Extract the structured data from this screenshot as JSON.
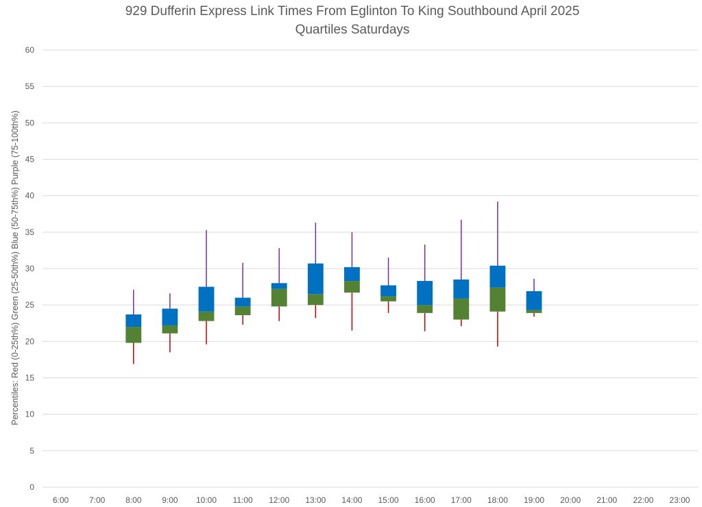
{
  "chart_data": {
    "type": "box",
    "title": "929 Dufferin Express Link Times From Eglinton To King Southbound April 2025",
    "subtitle": "Quartiles Saturdays",
    "ylabel": "Percentiles:  Red (0-25th%)  Green (25-50th%)  Blue (50-75th%)  Purple (75-100th%)",
    "xlabel": "",
    "ylim": [
      0,
      60
    ],
    "yticks": [
      "0",
      "5",
      "10",
      "15",
      "20",
      "25",
      "30",
      "35",
      "40",
      "45",
      "50",
      "55",
      "60"
    ],
    "grid": true,
    "legend": "none",
    "categories": [
      "6:00",
      "7:00",
      "8:00",
      "9:00",
      "10:00",
      "11:00",
      "12:00",
      "13:00",
      "14:00",
      "15:00",
      "16:00",
      "17:00",
      "18:00",
      "19:00",
      "20:00",
      "21:00",
      "22:00",
      "23:00"
    ],
    "colors": {
      "min_to_q1": "#c00000",
      "q1_to_median": "#548235",
      "median_to_q3": "#0070c0",
      "q3_to_max": "#7030a0",
      "grid": "#d9d9d9",
      "text": "#595959"
    },
    "quartiles": [
      {
        "x": "8:00",
        "min": 16.9,
        "q1": 19.8,
        "median": 22.0,
        "q3": 23.7,
        "max": 27.1
      },
      {
        "x": "9:00",
        "min": 18.5,
        "q1": 21.1,
        "median": 22.2,
        "q3": 24.5,
        "max": 26.6
      },
      {
        "x": "10:00",
        "min": 19.6,
        "q1": 22.8,
        "median": 24.1,
        "q3": 27.5,
        "max": 35.3
      },
      {
        "x": "11:00",
        "min": 22.3,
        "q1": 23.6,
        "median": 24.8,
        "q3": 26.0,
        "max": 30.8
      },
      {
        "x": "12:00",
        "min": 22.8,
        "q1": 24.8,
        "median": 27.2,
        "q3": 28.0,
        "max": 32.8
      },
      {
        "x": "13:00",
        "min": 23.2,
        "q1": 25.0,
        "median": 26.5,
        "q3": 30.7,
        "max": 36.3
      },
      {
        "x": "14:00",
        "min": 21.5,
        "q1": 26.7,
        "median": 28.3,
        "q3": 30.2,
        "max": 35.0
      },
      {
        "x": "15:00",
        "min": 23.9,
        "q1": 25.5,
        "median": 26.2,
        "q3": 27.7,
        "max": 31.5
      },
      {
        "x": "16:00",
        "min": 21.4,
        "q1": 23.9,
        "median": 25.0,
        "q3": 28.3,
        "max": 33.3
      },
      {
        "x": "17:00",
        "min": 22.1,
        "q1": 23.0,
        "median": 25.9,
        "q3": 28.5,
        "max": 36.7
      },
      {
        "x": "18:00",
        "min": 19.3,
        "q1": 24.1,
        "median": 27.4,
        "q3": 30.4,
        "max": 39.2
      },
      {
        "x": "19:00",
        "min": 23.4,
        "q1": 23.9,
        "median": 24.3,
        "q3": 26.9,
        "max": 28.6
      }
    ]
  }
}
